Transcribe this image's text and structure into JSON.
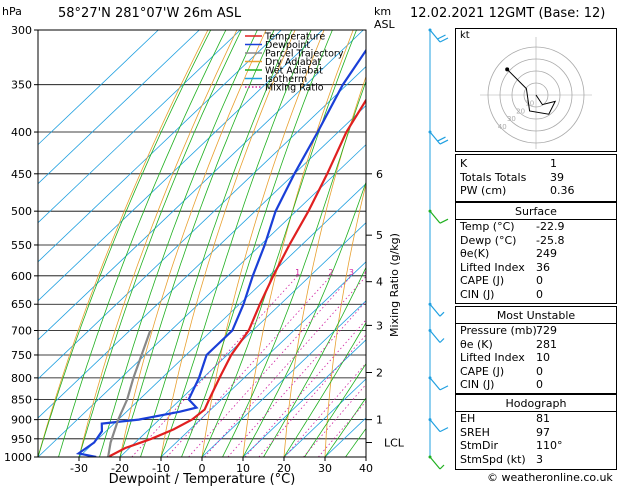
{
  "header": {
    "pressure_unit": "hPa",
    "location": "58°27'N 281°07'W 26m ASL",
    "height_unit": "km",
    "height_ref": "ASL",
    "datetime": "12.02.2021 12GMT (Base: 12)"
  },
  "chart_data": {
    "type": "line",
    "title": "",
    "xlabel": "Dewpoint / Temperature (°C)",
    "ylabel_right": "Mixing Ratio (g/kg)",
    "y_scale": "log-pressure",
    "ylim": [
      1000,
      300
    ],
    "xlim_at_1000hPa": [
      -40,
      40
    ],
    "x_ticks": [
      "-30",
      "-20",
      "-10",
      "0",
      "10",
      "20",
      "30",
      "40"
    ],
    "pressure_levels": [
      "300",
      "350",
      "400",
      "450",
      "500",
      "550",
      "600",
      "650",
      "700",
      "750",
      "800",
      "850",
      "900",
      "950",
      "1000"
    ],
    "km_ticks": [
      {
        "label": "6",
        "p": 450
      },
      {
        "label": "5",
        "p": 535
      },
      {
        "label": "4",
        "p": 610
      },
      {
        "label": "3",
        "p": 690
      },
      {
        "label": "2",
        "p": 788
      },
      {
        "label": "1",
        "p": 900
      },
      {
        "label": "LCL",
        "p": 960
      }
    ],
    "mixing_ratio_labels": [
      "1",
      "2",
      "3",
      "4",
      "6",
      "8",
      "10",
      "15",
      "20",
      "25"
    ],
    "legend": {
      "placement": "top-left",
      "entries": [
        {
          "name": "Temperature",
          "color": "#e02020",
          "dotted": false
        },
        {
          "name": "Dewpoint",
          "color": "#1a3fd8",
          "dotted": false
        },
        {
          "name": "Parcel Trajectory",
          "color": "#888888",
          "dotted": false
        },
        {
          "name": "Dry Adiabat",
          "color": "#e8a030",
          "dotted": false
        },
        {
          "name": "Wet Adiabat",
          "color": "#20b020",
          "dotted": false
        },
        {
          "name": "Isotherm",
          "color": "#20a0e0",
          "dotted": false
        },
        {
          "name": "Mixing Ratio",
          "color": "#d020a0",
          "dotted": true
        }
      ]
    },
    "series": [
      {
        "name": "Temperature",
        "color": "#e02020",
        "points": [
          {
            "p": 1000,
            "t": -22.9
          },
          {
            "p": 975,
            "t": -21
          },
          {
            "p": 950,
            "t": -17
          },
          {
            "p": 925,
            "t": -14
          },
          {
            "p": 900,
            "t": -12
          },
          {
            "p": 875,
            "t": -11.5
          },
          {
            "p": 850,
            "t": -13
          },
          {
            "p": 800,
            "t": -16
          },
          {
            "p": 750,
            "t": -19
          },
          {
            "p": 700,
            "t": -21
          },
          {
            "p": 650,
            "t": -25
          },
          {
            "p": 600,
            "t": -29
          },
          {
            "p": 550,
            "t": -33
          },
          {
            "p": 500,
            "t": -37
          },
          {
            "p": 450,
            "t": -42
          },
          {
            "p": 400,
            "t": -48
          },
          {
            "p": 350,
            "t": -53
          },
          {
            "p": 300,
            "t": -57
          }
        ]
      },
      {
        "name": "Dewpoint",
        "color": "#1a3fd8",
        "points": [
          {
            "p": 1000,
            "t": -25.8
          },
          {
            "p": 990,
            "t": -31
          },
          {
            "p": 960,
            "t": -30
          },
          {
            "p": 930,
            "t": -31
          },
          {
            "p": 910,
            "t": -33
          },
          {
            "p": 900,
            "t": -25
          },
          {
            "p": 880,
            "t": -17
          },
          {
            "p": 870,
            "t": -14
          },
          {
            "p": 850,
            "t": -18
          },
          {
            "p": 800,
            "t": -21
          },
          {
            "p": 750,
            "t": -25
          },
          {
            "p": 700,
            "t": -25
          },
          {
            "p": 650,
            "t": -29
          },
          {
            "p": 600,
            "t": -34
          },
          {
            "p": 550,
            "t": -39
          },
          {
            "p": 500,
            "t": -45
          },
          {
            "p": 450,
            "t": -50
          },
          {
            "p": 400,
            "t": -55
          },
          {
            "p": 350,
            "t": -61
          },
          {
            "p": 300,
            "t": -66
          }
        ]
      },
      {
        "name": "Parcel Trajectory",
        "color": "#888888",
        "points": [
          {
            "p": 1000,
            "t": -22.9
          },
          {
            "p": 960,
            "t": -26
          },
          {
            "p": 900,
            "t": -30
          },
          {
            "p": 850,
            "t": -33
          },
          {
            "p": 800,
            "t": -37
          },
          {
            "p": 700,
            "t": -45
          }
        ]
      }
    ],
    "wind_barbs": [
      {
        "p": 300,
        "speed_kt": 20
      },
      {
        "p": 400,
        "speed_kt": 20
      },
      {
        "p": 500,
        "speed_kt": 10
      },
      {
        "p": 650,
        "speed_kt": 5
      },
      {
        "p": 700,
        "speed_kt": 5
      },
      {
        "p": 800,
        "speed_kt": 10
      },
      {
        "p": 900,
        "speed_kt": 10
      },
      {
        "p": 1000,
        "speed_kt": 5
      }
    ]
  },
  "hodograph": {
    "unit_label": "kt",
    "ring_labels": [
      "10",
      "20",
      "30",
      "40"
    ],
    "path": [
      [
        0,
        0
      ],
      [
        2,
        -3
      ],
      [
        6,
        -2
      ],
      [
        4,
        -6
      ],
      [
        -2,
        -5
      ],
      [
        -3,
        2
      ],
      [
        -9,
        8
      ]
    ]
  },
  "indices": {
    "rows": [
      {
        "label": "K",
        "value": "1"
      },
      {
        "label": "Totals Totals",
        "value": "39"
      },
      {
        "label": "PW (cm)",
        "value": "0.36"
      }
    ]
  },
  "surface": {
    "title": "Surface",
    "rows": [
      {
        "label": "Temp (°C)",
        "value": "-22.9"
      },
      {
        "label": "Dewp (°C)",
        "value": "-25.8"
      },
      {
        "label": "θe(K)",
        "value": "249"
      },
      {
        "label": "Lifted Index",
        "value": "36"
      },
      {
        "label": "CAPE (J)",
        "value": "0"
      },
      {
        "label": "CIN (J)",
        "value": "0"
      }
    ]
  },
  "most_unstable": {
    "title": "Most Unstable",
    "rows": [
      {
        "label": "Pressure (mb)",
        "value": "729"
      },
      {
        "label": "θe (K)",
        "value": "281"
      },
      {
        "label": "Lifted Index",
        "value": "10"
      },
      {
        "label": "CAPE (J)",
        "value": "0"
      },
      {
        "label": "CIN (J)",
        "value": "0"
      }
    ]
  },
  "hodo_params": {
    "title": "Hodograph",
    "rows": [
      {
        "label": "EH",
        "value": "81"
      },
      {
        "label": "SREH",
        "value": "97"
      },
      {
        "label": "StmDir",
        "value": "110°"
      },
      {
        "label": "StmSpd (kt)",
        "value": "3"
      }
    ]
  },
  "footer": {
    "copyright": "© weatheronline.co.uk"
  }
}
